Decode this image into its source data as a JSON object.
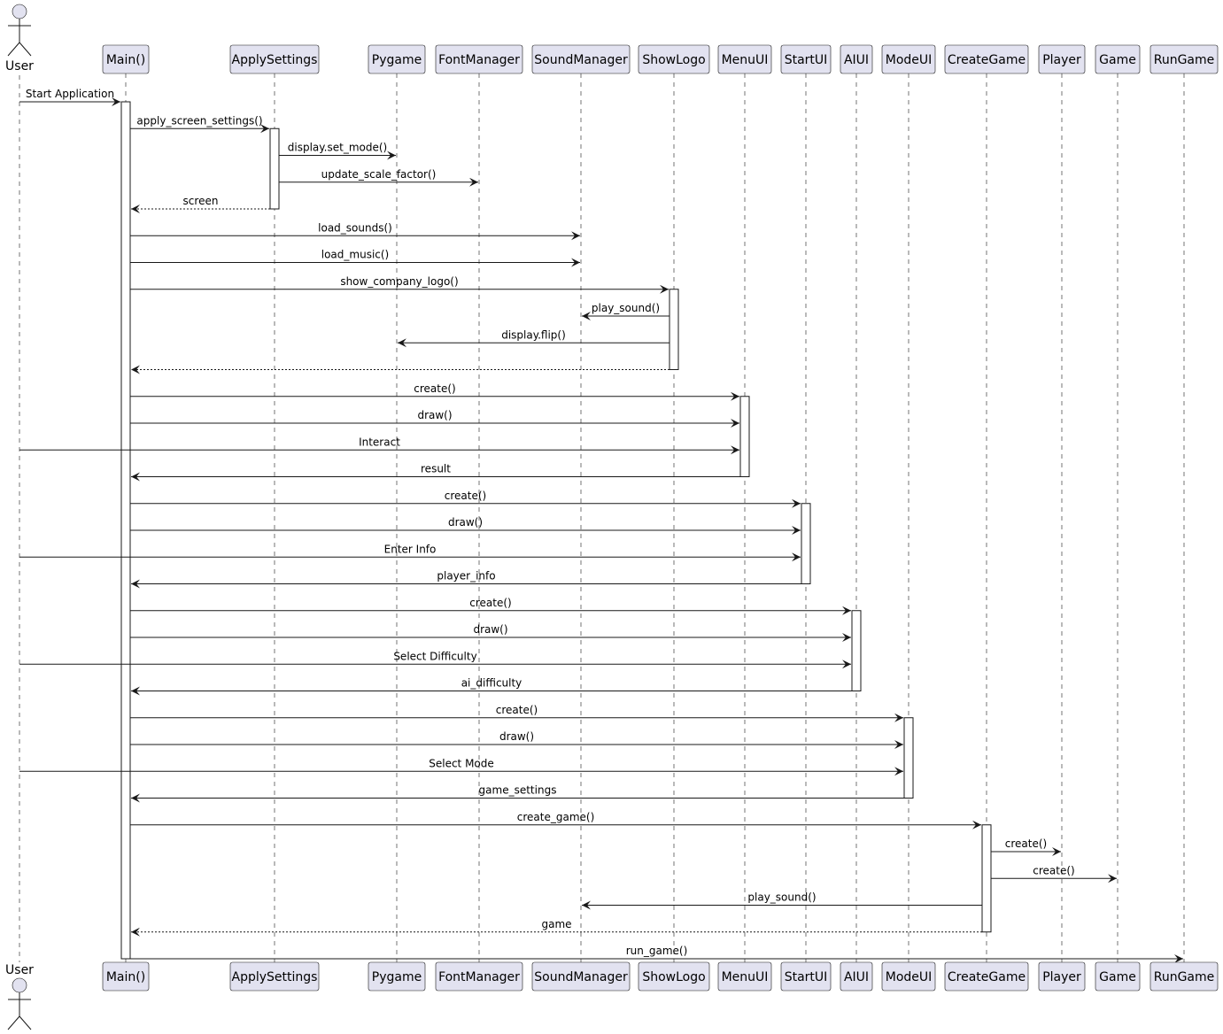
{
  "actor": "User",
  "participants": [
    "Main()",
    "ApplySettings",
    "Pygame",
    "FontManager",
    "SoundManager",
    "ShowLogo",
    "MenuUI",
    "StartUI",
    "AIUI",
    "ModeUI",
    "CreateGame",
    "Player",
    "Game",
    "RunGame"
  ],
  "messages": [
    {
      "from": "User",
      "to": "Main()",
      "label": "Start Application",
      "type": "call"
    },
    {
      "from": "Main()",
      "to": "ApplySettings",
      "label": "apply_screen_settings()",
      "type": "call"
    },
    {
      "from": "ApplySettings",
      "to": "Pygame",
      "label": "display.set_mode()",
      "type": "call"
    },
    {
      "from": "ApplySettings",
      "to": "FontManager",
      "label": "update_scale_factor()",
      "type": "call"
    },
    {
      "from": "ApplySettings",
      "to": "Main()",
      "label": "screen",
      "type": "return"
    },
    {
      "from": "Main()",
      "to": "SoundManager",
      "label": "load_sounds()",
      "type": "call"
    },
    {
      "from": "Main()",
      "to": "SoundManager",
      "label": "load_music()",
      "type": "call"
    },
    {
      "from": "Main()",
      "to": "ShowLogo",
      "label": "show_company_logo()",
      "type": "call"
    },
    {
      "from": "ShowLogo",
      "to": "SoundManager",
      "label": "play_sound()",
      "type": "call"
    },
    {
      "from": "ShowLogo",
      "to": "Pygame",
      "label": "display.flip()",
      "type": "call"
    },
    {
      "from": "ShowLogo",
      "to": "Main()",
      "label": "",
      "type": "return"
    },
    {
      "from": "Main()",
      "to": "MenuUI",
      "label": "create()",
      "type": "call"
    },
    {
      "from": "Main()",
      "to": "MenuUI",
      "label": "draw()",
      "type": "call"
    },
    {
      "from": "User",
      "to": "MenuUI",
      "label": "Interact",
      "type": "call"
    },
    {
      "from": "MenuUI",
      "to": "Main()",
      "label": "result",
      "type": "call"
    },
    {
      "from": "Main()",
      "to": "StartUI",
      "label": "create()",
      "type": "call"
    },
    {
      "from": "Main()",
      "to": "StartUI",
      "label": "draw()",
      "type": "call"
    },
    {
      "from": "User",
      "to": "StartUI",
      "label": "Enter Info",
      "type": "call"
    },
    {
      "from": "StartUI",
      "to": "Main()",
      "label": "player_info",
      "type": "call"
    },
    {
      "from": "Main()",
      "to": "AIUI",
      "label": "create()",
      "type": "call"
    },
    {
      "from": "Main()",
      "to": "AIUI",
      "label": "draw()",
      "type": "call"
    },
    {
      "from": "User",
      "to": "AIUI",
      "label": "Select Difficulty",
      "type": "call"
    },
    {
      "from": "AIUI",
      "to": "Main()",
      "label": "ai_difficulty",
      "type": "call"
    },
    {
      "from": "Main()",
      "to": "ModeUI",
      "label": "create()",
      "type": "call"
    },
    {
      "from": "Main()",
      "to": "ModeUI",
      "label": "draw()",
      "type": "call"
    },
    {
      "from": "User",
      "to": "ModeUI",
      "label": "Select Mode",
      "type": "call"
    },
    {
      "from": "ModeUI",
      "to": "Main()",
      "label": "game_settings",
      "type": "call"
    },
    {
      "from": "Main()",
      "to": "CreateGame",
      "label": "create_game()",
      "type": "call"
    },
    {
      "from": "CreateGame",
      "to": "Player",
      "label": "create()",
      "type": "call"
    },
    {
      "from": "CreateGame",
      "to": "Game",
      "label": "create()",
      "type": "call"
    },
    {
      "from": "CreateGame",
      "to": "SoundManager",
      "label": "play_sound()",
      "type": "call"
    },
    {
      "from": "CreateGame",
      "to": "Main()",
      "label": "game",
      "type": "return"
    },
    {
      "from": "Main()",
      "to": "RunGame",
      "label": "run_game()",
      "type": "call"
    }
  ]
}
